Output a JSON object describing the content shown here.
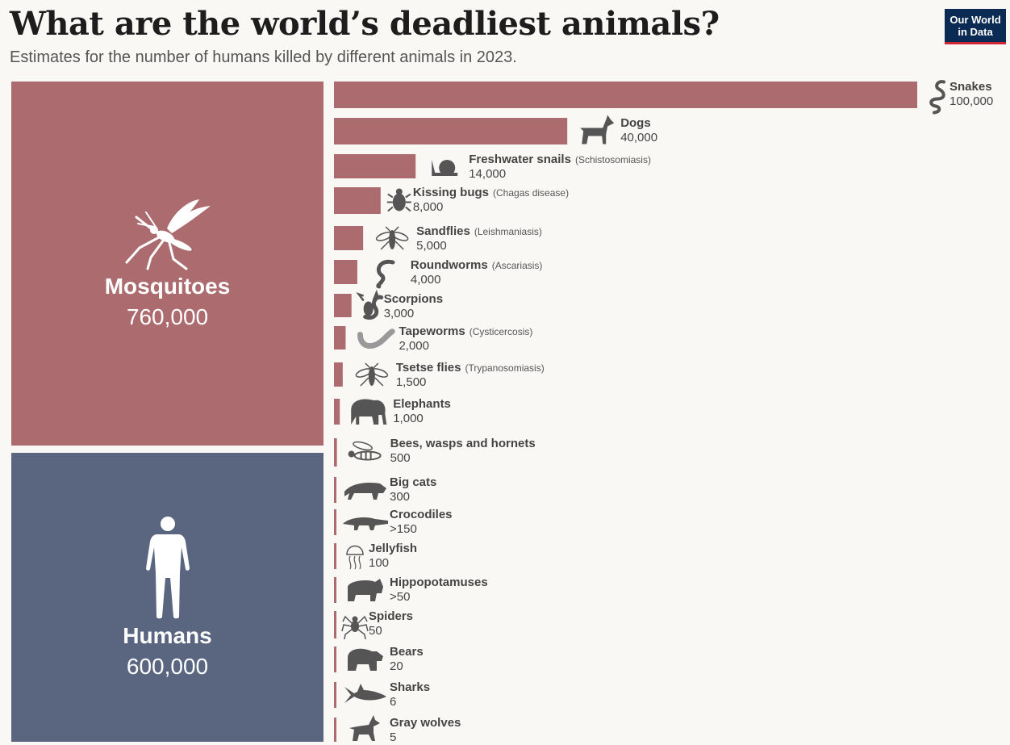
{
  "header": {
    "title": "What are the world’s deadliest animals?",
    "subtitle": "Estimates for the number of humans killed by different animals in 2023.",
    "logo_line1": "Our World",
    "logo_line2": "in Data"
  },
  "colors": {
    "bar": "#ac6b6f",
    "mosquitoes": "#ac6b6f",
    "humans": "#5a6680",
    "background": "#faf8f4",
    "icon": "#555555"
  },
  "chart_data": {
    "type": "bar",
    "title": "What are the world’s deadliest animals?",
    "subtitle": "Estimates for the number of humans killed by different animals in 2023.",
    "highlight": [
      {
        "name": "Mosquitoes",
        "value": 760000,
        "label": "760,000",
        "icon": "mosquito-icon"
      },
      {
        "name": "Humans",
        "value": 600000,
        "label": "600,000",
        "icon": "human-icon"
      }
    ],
    "bars": [
      {
        "name": "Snakes",
        "note": "",
        "value": 100000,
        "label": "100,000",
        "icon": "snake-icon"
      },
      {
        "name": "Dogs",
        "note": "",
        "value": 40000,
        "label": "40,000",
        "icon": "dog-icon"
      },
      {
        "name": "Freshwater snails",
        "note": "(Schistosomiasis)",
        "value": 14000,
        "label": "14,000",
        "icon": "snail-icon"
      },
      {
        "name": "Kissing bugs",
        "note": "(Chagas disease)",
        "value": 8000,
        "label": "8,000",
        "icon": "bug-icon"
      },
      {
        "name": "Sandflies",
        "note": "(Leishmaniasis)",
        "value": 5000,
        "label": "5,000",
        "icon": "sandfly-icon"
      },
      {
        "name": "Roundworms",
        "note": "(Ascariasis)",
        "value": 4000,
        "label": "4,000",
        "icon": "roundworm-icon"
      },
      {
        "name": "Scorpions",
        "note": "",
        "value": 3000,
        "label": "3,000",
        "icon": "scorpion-icon"
      },
      {
        "name": "Tapeworms",
        "note": "(Cysticercosis)",
        "value": 2000,
        "label": "2,000",
        "icon": "tapeworm-icon"
      },
      {
        "name": "Tsetse flies",
        "note": "(Trypanosomiasis)",
        "value": 1500,
        "label": "1,500",
        "icon": "tsetse-fly-icon"
      },
      {
        "name": "Elephants",
        "note": "",
        "value": 1000,
        "label": "1,000",
        "icon": "elephant-icon"
      },
      {
        "name": "Bees, wasps and hornets",
        "note": "",
        "value": 500,
        "label": "500",
        "icon": "wasp-icon"
      },
      {
        "name": "Big cats",
        "note": "",
        "value": 300,
        "label": "300",
        "icon": "big-cat-icon"
      },
      {
        "name": "Crocodiles",
        "note": "",
        "value": 150,
        "label": ">150",
        "icon": "crocodile-icon"
      },
      {
        "name": "Jellyfish",
        "note": "",
        "value": 100,
        "label": "100",
        "icon": "jellyfish-icon"
      },
      {
        "name": "Hippopotamuses",
        "note": "",
        "value": 50,
        "label": ">50",
        "icon": "hippo-icon"
      },
      {
        "name": "Spiders",
        "note": "",
        "value": 50,
        "label": "50",
        "icon": "spider-icon"
      },
      {
        "name": "Bears",
        "note": "",
        "value": 20,
        "label": "20",
        "icon": "bear-icon"
      },
      {
        "name": "Sharks",
        "note": "",
        "value": 6,
        "label": "6",
        "icon": "shark-icon"
      },
      {
        "name": "Gray wolves",
        "note": "",
        "value": 5,
        "label": "5",
        "icon": "wolf-icon"
      }
    ]
  }
}
